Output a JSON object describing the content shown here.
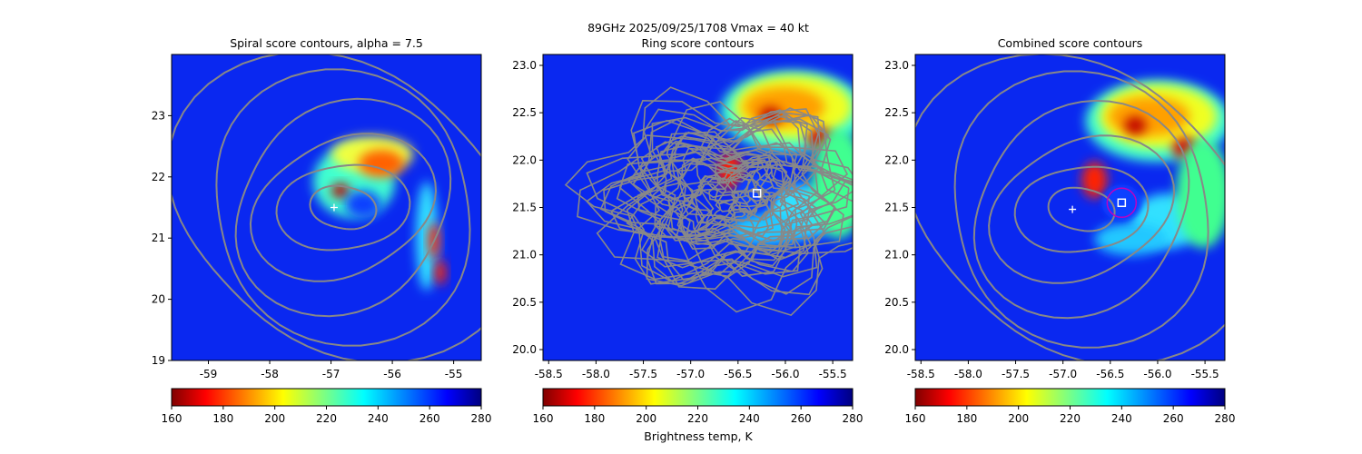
{
  "figure": {
    "suptitle_line1": "89GHz  2025/09/25/1708    Vmax = 40 kt",
    "colorbar_label": "Brightness temp, K"
  },
  "chart_data": [
    {
      "type": "heatmap",
      "title": "Spiral score contours, alpha =  7.5",
      "xlim": [
        -59.6,
        -54.55
      ],
      "ylim": [
        19.0,
        24.0
      ],
      "xticks": [
        "-59",
        "-58",
        "-57",
        "-56",
        "-55"
      ],
      "xtick_values": [
        -59,
        -58,
        -57,
        -56,
        -55
      ],
      "yticks": [
        "19",
        "20",
        "21",
        "22",
        "23"
      ],
      "ytick_values": [
        19,
        20,
        21,
        22,
        23
      ],
      "center_plus": [
        -56.95,
        21.5
      ],
      "colorbar": {
        "min": 160,
        "max": 280,
        "ticks": [
          "160",
          "180",
          "200",
          "220",
          "240",
          "260",
          "280"
        ],
        "colormap": "jet_r"
      }
    },
    {
      "type": "heatmap",
      "title": "Ring score contours",
      "xlim": [
        -58.56,
        -55.29
      ],
      "ylim": [
        19.885,
        23.115
      ],
      "xticks": [
        "-58.5",
        "-58.0",
        "-57.5",
        "-57.0",
        "-56.5",
        "-56.0",
        "-55.5"
      ],
      "xtick_values": [
        -58.5,
        -58.0,
        -57.5,
        -57.0,
        -56.5,
        -56.0,
        -55.5
      ],
      "yticks": [
        "20.0",
        "20.5",
        "21.0",
        "21.5",
        "22.0",
        "22.5",
        "23.0"
      ],
      "ytick_values": [
        20.0,
        20.5,
        21.0,
        21.5,
        22.0,
        22.5,
        23.0
      ],
      "center_square": [
        -56.3,
        21.65
      ],
      "colorbar": {
        "min": 160,
        "max": 280,
        "ticks": [
          "160",
          "180",
          "200",
          "220",
          "240",
          "260",
          "280"
        ],
        "colormap": "jet_r"
      }
    },
    {
      "type": "heatmap",
      "title": "Combined score contours",
      "xlim": [
        -58.56,
        -55.29
      ],
      "ylim": [
        19.885,
        23.115
      ],
      "xticks": [
        "-58.5",
        "-58.0",
        "-57.5",
        "-57.0",
        "-56.5",
        "-56.0",
        "-55.5"
      ],
      "xtick_values": [
        -58.5,
        -58.0,
        -57.5,
        -57.0,
        -56.5,
        -56.0,
        -55.5
      ],
      "yticks": [
        "20.0",
        "20.5",
        "21.0",
        "21.5",
        "22.0",
        "22.5",
        "23.0"
      ],
      "ytick_values": [
        20.0,
        20.5,
        21.0,
        21.5,
        22.0,
        22.5,
        23.0
      ],
      "center_plus": [
        -56.9,
        21.48
      ],
      "center_square": [
        -56.38,
        21.55
      ],
      "ring_circle": {
        "center": [
          -56.38,
          21.55
        ],
        "radius_deg": 0.15,
        "color": "#c000c0"
      },
      "colorbar": {
        "min": 160,
        "max": 280,
        "ticks": [
          "160",
          "180",
          "200",
          "220",
          "240",
          "260",
          "280"
        ],
        "colormap": "jet_r"
      }
    }
  ]
}
